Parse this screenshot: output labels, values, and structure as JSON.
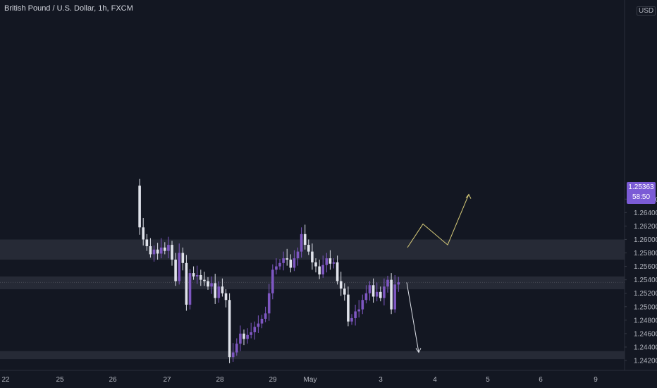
{
  "header": {
    "title": "British Pound / U.S. Dollar, 1h, FXCM",
    "currency": "USD"
  },
  "price_badge": {
    "price": "1.25363",
    "countdown": "58:50"
  },
  "colors": {
    "background": "#131722",
    "zone": "#2a2e39",
    "up_candle": "#7e57c2",
    "down_candle": "#e0e3eb",
    "forecast_up": "#d8cc7a",
    "forecast_down": "#e0e3eb",
    "axis_text": "#b2b5be"
  },
  "chart_data": {
    "type": "candlestick",
    "symbol": "GBPUSD",
    "timeframe": "1h",
    "ylim": [
      1.2415,
      1.268
    ],
    "y_ticks": [
      "1.24200",
      "1.24400",
      "1.24600",
      "1.24800",
      "1.25000",
      "1.25200",
      "1.25400",
      "1.25600",
      "1.25800",
      "1.26000",
      "1.26200",
      "1.26400",
      "1.26600"
    ],
    "x_ticks": [
      "22",
      "25",
      "26",
      "27",
      "28",
      "29",
      "May",
      "3",
      "4",
      "5",
      "6",
      "9"
    ],
    "zones": [
      {
        "from": 1.257,
        "to": 1.26
      },
      {
        "from": 1.2526,
        "to": 1.2545
      },
      {
        "from": 1.2422,
        "to": 1.2434
      }
    ],
    "last_price": 1.25363,
    "series": [
      {
        "values": [
          1.268,
          1.2618,
          1.26,
          1.259,
          1.2578,
          1.2585,
          1.2579,
          1.2588,
          1.2583,
          1.2592,
          1.257,
          1.2538,
          1.258,
          1.2565,
          1.2503,
          1.255,
          1.2545,
          1.2547,
          1.254,
          1.2538,
          1.253,
          1.2535,
          1.2513,
          1.253,
          1.252,
          1.251,
          1.2425,
          1.2432,
          1.2445,
          1.246,
          1.2452,
          1.2458,
          1.2462,
          1.247,
          1.2475,
          1.2482,
          1.249,
          1.252,
          1.2555,
          1.256,
          1.2565,
          1.2572,
          1.257,
          1.2558,
          1.2572,
          1.2582,
          1.2608,
          1.2592,
          1.2582,
          1.2566,
          1.256,
          1.2548,
          1.2562,
          1.2572,
          1.2564,
          1.2566,
          1.2538,
          1.2527,
          1.2518,
          1.2478,
          1.2483,
          1.2493,
          1.2496,
          1.251,
          1.252,
          1.2532,
          1.2515,
          1.2522,
          1.2513,
          1.253,
          1.254,
          1.2496,
          1.2533,
          1.25363
        ]
      }
    ],
    "forecast": {
      "up_path": [
        [
          0,
          1.2588
        ],
        [
          1,
          1.2623
        ],
        [
          2,
          1.2592
        ],
        [
          3,
          1.2667
        ]
      ],
      "down_path": [
        [
          0,
          1.2536
        ],
        [
          1,
          1.2432
        ]
      ]
    }
  }
}
